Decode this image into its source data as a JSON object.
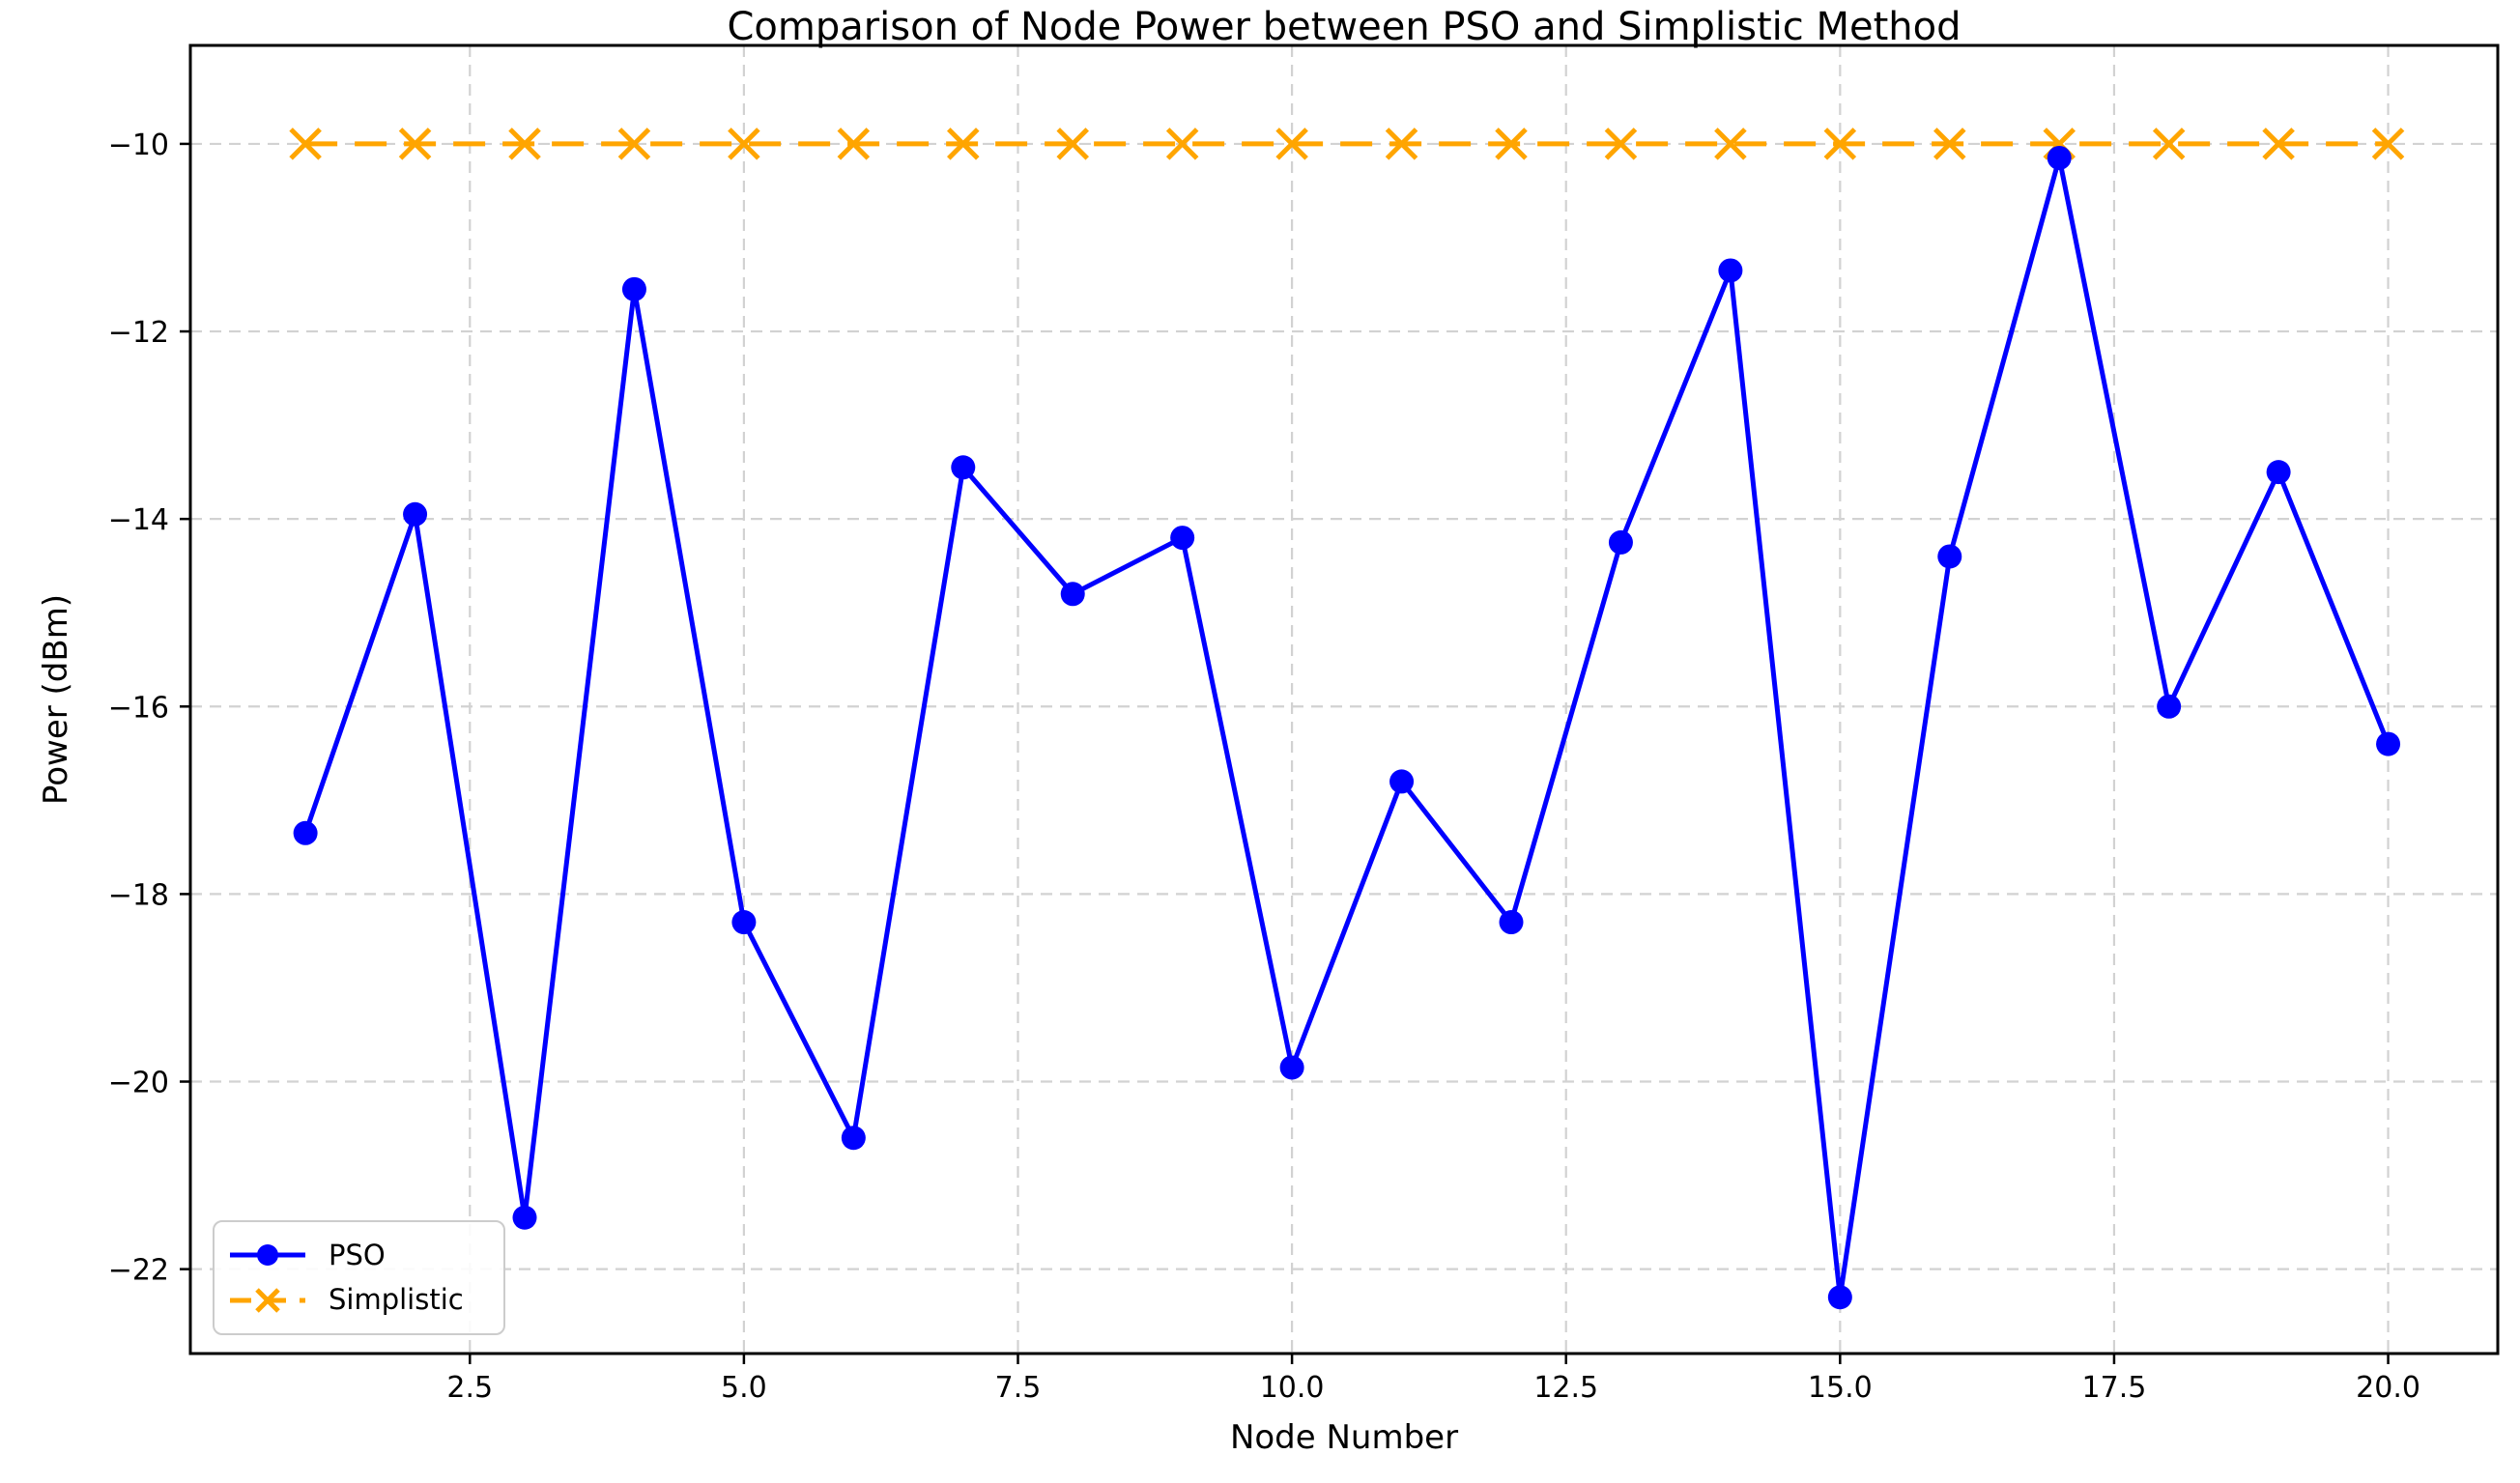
{
  "figure": {
    "title": "Comparison of Node Power between PSO and Simplistic Method",
    "xlabel": "Node Number",
    "ylabel": "Power (dBm)"
  },
  "legend": {
    "position": "lower left",
    "items": [
      {
        "label": "PSO",
        "color": "#0000ff",
        "marker": "circle",
        "linestyle": "solid"
      },
      {
        "label": "Simplistic",
        "color": "#ffa500",
        "marker": "x",
        "linestyle": "dashed"
      }
    ]
  },
  "chart_data": {
    "type": "line",
    "title": "Comparison of Node Power between PSO and Simplistic Method",
    "xlabel": "Node Number",
    "ylabel": "Power (dBm)",
    "x": [
      1,
      2,
      3,
      4,
      5,
      6,
      7,
      8,
      9,
      10,
      11,
      12,
      13,
      14,
      15,
      16,
      17,
      18,
      19,
      20
    ],
    "series": [
      {
        "name": "PSO",
        "color": "#0000ff",
        "marker": "circle",
        "linestyle": "solid",
        "values": [
          -17.35,
          -13.95,
          -21.45,
          -11.55,
          -18.3,
          -20.6,
          -13.45,
          -14.8,
          -14.2,
          -19.85,
          -16.8,
          -18.3,
          -14.25,
          -11.35,
          -22.3,
          -14.4,
          -10.15,
          -16.0,
          -13.5,
          -16.4
        ]
      },
      {
        "name": "Simplistic",
        "color": "#ffa500",
        "marker": "x",
        "linestyle": "dashed",
        "values": [
          -10,
          -10,
          -10,
          -10,
          -10,
          -10,
          -10,
          -10,
          -10,
          -10,
          -10,
          -10,
          -10,
          -10,
          -10,
          -10,
          -10,
          -10,
          -10,
          -10
        ]
      }
    ],
    "xticks": {
      "values": [
        2.5,
        5.0,
        7.5,
        10.0,
        12.5,
        15.0,
        17.5,
        20.0
      ],
      "labels": [
        "2.5",
        "5.0",
        "7.5",
        "10.0",
        "12.5",
        "15.0",
        "17.5",
        "20.0"
      ]
    },
    "yticks": {
      "values": [
        -10,
        -12,
        -14,
        -16,
        -18,
        -20,
        -22
      ],
      "labels": [
        "−10",
        "−12",
        "−14",
        "−16",
        "−18",
        "−20",
        "−22"
      ]
    },
    "xlim": [
      -0.05,
      21.0
    ],
    "ylim": [
      -22.9,
      -8.95
    ],
    "grid": true,
    "grid_style": "dashed",
    "grid_color": "#d2d2d2",
    "spine_color": "#000000",
    "background": "#ffffff",
    "legend_position": "lower left"
  }
}
